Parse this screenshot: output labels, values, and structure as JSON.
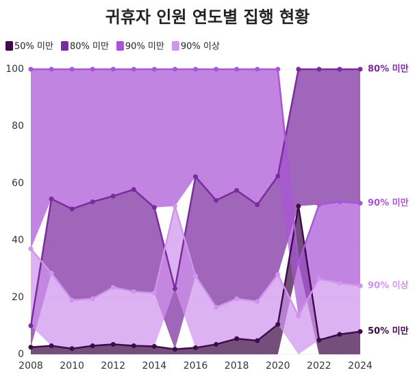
{
  "chart_data": {
    "type": "area",
    "title": "귀휴자 인원 연도별 집행 현황",
    "x": [
      2008,
      2009,
      2010,
      2011,
      2012,
      2013,
      2014,
      2015,
      2016,
      2017,
      2018,
      2019,
      2020,
      2021,
      2022,
      2023,
      2024
    ],
    "xlim": [
      2008,
      2024
    ],
    "xticks": [
      2008,
      2010,
      2012,
      2014,
      2016,
      2018,
      2020,
      2022,
      2024
    ],
    "ylim": [
      0,
      100
    ],
    "yticks": [
      0,
      20,
      40,
      60,
      80,
      100
    ],
    "grid": true,
    "stacked": true,
    "series": [
      {
        "name": "50% 미만",
        "color": "#3f0b4a",
        "values": [
          2.5,
          3,
          2,
          3,
          3.5,
          3,
          2.8,
          1.8,
          2.3,
          3.5,
          5.5,
          4.8,
          10.5,
          20,
          5,
          7,
          8
        ]
      },
      {
        "name": "80% 미만",
        "color": "#7b2b9e",
        "values": [
          7.5,
          26,
          32,
          34,
          32,
          35.8,
          30,
          21.2,
          34.8,
          37.5,
          38,
          34,
          34.5,
          48,
          47.5,
          46.5,
          47
        ]
      },
      {
        "name": "90% 미만",
        "color": "#a956d6",
        "values": [
          63,
          45.5,
          49,
          46.5,
          44.5,
          42.2,
          48.5,
          48,
          37.7,
          46,
          42.5,
          47.5,
          37.5,
          18.5,
          26,
          28.5,
          29
        ]
      },
      {
        "name": "90% 이상",
        "color": "#d094ee",
        "values": [
          27,
          25.5,
          17,
          16.5,
          20,
          19,
          18.7,
          29,
          25.2,
          13,
          14,
          13.7,
          17.5,
          13.5,
          21.5,
          18,
          16
        ]
      }
    ]
  }
}
